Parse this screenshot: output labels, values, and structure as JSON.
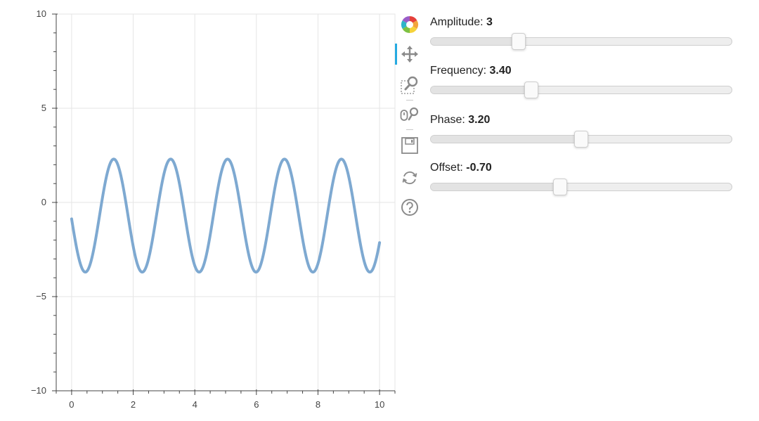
{
  "chart_data": {
    "type": "line",
    "title": "",
    "xlabel": "",
    "ylabel": "",
    "xlim": [
      -0.5,
      10.5
    ],
    "ylim": [
      -10,
      10
    ],
    "x_ticks": [
      0,
      2,
      4,
      6,
      8,
      10
    ],
    "x_tick_labels": [
      "0",
      "2",
      "4",
      "6",
      "8",
      "10"
    ],
    "y_ticks": [
      -10,
      -5,
      0,
      5,
      10
    ],
    "y_tick_labels": [
      "−10",
      "−5",
      "0",
      "5",
      "10"
    ],
    "grid": true,
    "line_color": "#7ea9d1",
    "series": [
      {
        "function": "y = 3 * sin(3.40 * x + 3.20) - 0.70",
        "x_range": [
          0,
          10
        ],
        "amplitude": 3,
        "frequency": 3.4,
        "phase": 3.2,
        "offset": -0.7
      }
    ]
  },
  "toolbar": {
    "tools": [
      {
        "name": "bokeh-logo-icon",
        "active": false
      },
      {
        "name": "pan-icon",
        "active": true
      },
      {
        "name": "box-zoom-icon",
        "active": false
      },
      {
        "name": "wheel-zoom-icon",
        "active": false
      },
      {
        "name": "save-icon",
        "active": false
      },
      {
        "name": "reset-icon",
        "active": false
      },
      {
        "name": "help-icon",
        "active": false
      }
    ]
  },
  "sliders": [
    {
      "label": "Amplitude: ",
      "value": "3",
      "start": 0.1,
      "end": 10,
      "current": 3
    },
    {
      "label": "Frequency: ",
      "value": "3.40",
      "start": 0.1,
      "end": 10,
      "current": 3.4
    },
    {
      "label": "Phase: ",
      "value": "3.20",
      "start": 0,
      "end": 6.4,
      "current": 3.2
    },
    {
      "label": "Offset: ",
      "value": "-0.70",
      "start": -5,
      "end": 5,
      "current": -0.7
    }
  ]
}
